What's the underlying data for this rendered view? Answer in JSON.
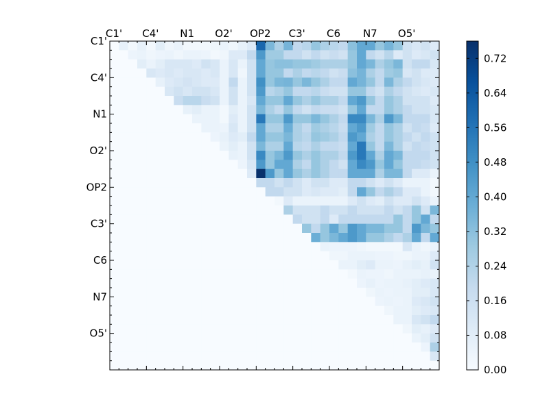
{
  "chart_data": {
    "type": "heatmap",
    "title": "",
    "xlabel": "",
    "ylabel": "",
    "n": 36,
    "x_tick_labels": [
      "C1'",
      "C4'",
      "N1",
      "O2'",
      "OP2",
      "C3'",
      "C6",
      "N7",
      "O5'"
    ],
    "y_tick_labels": [
      "C1'",
      "C4'",
      "N1",
      "O2'",
      "OP2",
      "C3'",
      "C6",
      "N7",
      "O5'"
    ],
    "tick_every": 4,
    "colorbar": {
      "vmin": 0.0,
      "vmax": 0.76,
      "ticks": [
        "0.00",
        "0.08",
        "0.16",
        "0.24",
        "0.32",
        "0.40",
        "0.48",
        "0.56",
        "0.64",
        "0.72"
      ],
      "colormap": "Blues",
      "stops": [
        "#f7fbff",
        "#deebf7",
        "#c6dbef",
        "#9ecae1",
        "#6baed6",
        "#4292c6",
        "#2171b5",
        "#08519c",
        "#08306b"
      ]
    },
    "matrix": [
      [
        0,
        0.06,
        0.02,
        0.06,
        0.02,
        0.08,
        0.03,
        0.05,
        0.02,
        0.02,
        0.02,
        0.03,
        0.05,
        0.03,
        0.06,
        0.1,
        0.6,
        0.35,
        0.25,
        0.36,
        0.2,
        0.22,
        0.3,
        0.25,
        0.22,
        0.2,
        0.32,
        0.4,
        0.4,
        0.3,
        0.36,
        0.3,
        0.15,
        0.12,
        0.15,
        0.1
      ],
      [
        0,
        0,
        0.04,
        0.05,
        0.03,
        0.04,
        0.05,
        0.03,
        0.05,
        0.05,
        0.04,
        0.02,
        0.03,
        0.1,
        0.1,
        0.2,
        0.45,
        0.28,
        0.28,
        0.2,
        0.2,
        0.15,
        0.2,
        0.15,
        0.18,
        0.15,
        0.3,
        0.4,
        0.2,
        0.15,
        0.22,
        0.1,
        0.15,
        0.1,
        0.12,
        0.15
      ],
      [
        0,
        0,
        0,
        0.08,
        0.05,
        0.08,
        0.12,
        0.12,
        0.12,
        0.1,
        0.15,
        0.12,
        0.05,
        0.12,
        0.05,
        0.15,
        0.4,
        0.3,
        0.32,
        0.32,
        0.3,
        0.3,
        0.28,
        0.25,
        0.25,
        0.25,
        0.3,
        0.4,
        0.35,
        0.25,
        0.3,
        0.35,
        0.15,
        0.2,
        0.2,
        0.12
      ],
      [
        0,
        0,
        0,
        0,
        0.12,
        0.1,
        0.12,
        0.1,
        0.12,
        0.12,
        0.1,
        0.12,
        0.05,
        0.12,
        0.03,
        0.15,
        0.4,
        0.3,
        0.3,
        0.2,
        0.25,
        0.2,
        0.22,
        0.2,
        0.15,
        0.18,
        0.32,
        0.36,
        0.25,
        0.2,
        0.28,
        0.3,
        0.12,
        0.15,
        0.1,
        0.1
      ],
      [
        0,
        0,
        0,
        0,
        0,
        0.06,
        0.1,
        0.12,
        0.14,
        0.12,
        0.1,
        0.1,
        0.05,
        0.2,
        0.05,
        0.15,
        0.48,
        0.3,
        0.35,
        0.36,
        0.3,
        0.35,
        0.3,
        0.25,
        0.2,
        0.2,
        0.4,
        0.36,
        0.3,
        0.2,
        0.35,
        0.25,
        0.2,
        0.15,
        0.12,
        0.1
      ],
      [
        0,
        0,
        0,
        0,
        0,
        0,
        0.12,
        0.15,
        0.12,
        0.15,
        0.15,
        0.12,
        0.05,
        0.15,
        0.05,
        0.15,
        0.45,
        0.22,
        0.25,
        0.3,
        0.2,
        0.2,
        0.22,
        0.18,
        0.15,
        0.15,
        0.3,
        0.3,
        0.2,
        0.15,
        0.25,
        0.2,
        0.15,
        0.12,
        0.1,
        0.12
      ],
      [
        0,
        0,
        0,
        0,
        0,
        0,
        0,
        0.18,
        0.22,
        0.22,
        0.18,
        0.15,
        0.05,
        0.15,
        0.05,
        0.12,
        0.4,
        0.3,
        0.3,
        0.4,
        0.3,
        0.25,
        0.3,
        0.25,
        0.25,
        0.2,
        0.4,
        0.45,
        0.3,
        0.2,
        0.3,
        0.25,
        0.15,
        0.15,
        0.15,
        0.1
      ],
      [
        0,
        0,
        0,
        0,
        0,
        0,
        0,
        0,
        0.06,
        0.08,
        0.05,
        0.05,
        0.02,
        0.08,
        0.05,
        0.15,
        0.35,
        0.25,
        0.2,
        0.3,
        0.2,
        0.15,
        0.2,
        0.18,
        0.18,
        0.15,
        0.3,
        0.4,
        0.2,
        0.2,
        0.3,
        0.25,
        0.2,
        0.15,
        0.15,
        0.12
      ],
      [
        0,
        0,
        0,
        0,
        0,
        0,
        0,
        0,
        0,
        0.05,
        0.05,
        0.05,
        0.02,
        0.1,
        0.05,
        0.15,
        0.55,
        0.3,
        0.3,
        0.45,
        0.3,
        0.3,
        0.35,
        0.3,
        0.25,
        0.2,
        0.5,
        0.5,
        0.35,
        0.25,
        0.45,
        0.35,
        0.2,
        0.2,
        0.2,
        0.12
      ],
      [
        0,
        0,
        0,
        0,
        0,
        0,
        0,
        0,
        0,
        0,
        0.05,
        0.05,
        0.04,
        0.12,
        0.05,
        0.15,
        0.4,
        0.25,
        0.25,
        0.38,
        0.25,
        0.2,
        0.28,
        0.25,
        0.22,
        0.18,
        0.4,
        0.45,
        0.28,
        0.2,
        0.3,
        0.25,
        0.15,
        0.2,
        0.18,
        0.1
      ],
      [
        0,
        0,
        0,
        0,
        0,
        0,
        0,
        0,
        0,
        0,
        0,
        0.04,
        0.06,
        0.1,
        0.08,
        0.2,
        0.4,
        0.3,
        0.3,
        0.35,
        0.25,
        0.22,
        0.3,
        0.28,
        0.25,
        0.2,
        0.45,
        0.4,
        0.25,
        0.2,
        0.3,
        0.25,
        0.2,
        0.15,
        0.2,
        0.15
      ],
      [
        0,
        0,
        0,
        0,
        0,
        0,
        0,
        0,
        0,
        0,
        0,
        0,
        0.05,
        0.08,
        0.05,
        0.15,
        0.35,
        0.25,
        0.25,
        0.4,
        0.22,
        0.2,
        0.25,
        0.2,
        0.2,
        0.18,
        0.4,
        0.55,
        0.3,
        0.2,
        0.35,
        0.25,
        0.15,
        0.2,
        0.18,
        0.15
      ],
      [
        0,
        0,
        0,
        0,
        0,
        0,
        0,
        0,
        0,
        0,
        0,
        0,
        0,
        0.06,
        0.05,
        0.15,
        0.5,
        0.3,
        0.35,
        0.45,
        0.3,
        0.25,
        0.3,
        0.25,
        0.25,
        0.2,
        0.45,
        0.55,
        0.4,
        0.25,
        0.4,
        0.35,
        0.2,
        0.2,
        0.2,
        0.15
      ],
      [
        0,
        0,
        0,
        0,
        0,
        0,
        0,
        0,
        0,
        0,
        0,
        0,
        0,
        0,
        0.04,
        0.12,
        0.45,
        0.3,
        0.4,
        0.4,
        0.25,
        0.2,
        0.3,
        0.25,
        0.2,
        0.15,
        0.4,
        0.5,
        0.45,
        0.3,
        0.4,
        0.3,
        0.2,
        0.2,
        0.18,
        0.15
      ],
      [
        0,
        0,
        0,
        0,
        0,
        0,
        0,
        0,
        0,
        0,
        0,
        0,
        0,
        0,
        0,
        0.1,
        0.76,
        0.45,
        0.3,
        0.4,
        0.3,
        0.25,
        0.3,
        0.25,
        0.2,
        0.2,
        0.4,
        0.4,
        0.4,
        0.25,
        0.35,
        0.35,
        0.2,
        0.1,
        0.1,
        0.05
      ],
      [
        0,
        0,
        0,
        0,
        0,
        0,
        0,
        0,
        0,
        0,
        0,
        0,
        0,
        0,
        0,
        0,
        0.2,
        0.2,
        0.15,
        0.2,
        0.15,
        0.1,
        0.15,
        0.15,
        0.1,
        0.1,
        0.2,
        0.2,
        0.15,
        0.1,
        0.15,
        0.1,
        0.05,
        0.05,
        0.05,
        0.02
      ],
      [
        0,
        0,
        0,
        0,
        0,
        0,
        0,
        0,
        0,
        0,
        0,
        0,
        0,
        0,
        0,
        0,
        0,
        0.2,
        0.2,
        0.15,
        0.15,
        0.1,
        0.12,
        0.1,
        0.1,
        0.08,
        0.2,
        0.4,
        0.3,
        0.2,
        0.25,
        0.2,
        0.1,
        0.1,
        0.05,
        0.02
      ],
      [
        0,
        0,
        0,
        0,
        0,
        0,
        0,
        0,
        0,
        0,
        0,
        0,
        0,
        0,
        0,
        0,
        0,
        0,
        0.02,
        0.1,
        0.05,
        0.05,
        0.05,
        0.05,
        0.05,
        0.05,
        0.1,
        0.15,
        0.1,
        0.08,
        0.15,
        0.1,
        0.1,
        0.15,
        0.1,
        0.05
      ],
      [
        0,
        0,
        0,
        0,
        0,
        0,
        0,
        0,
        0,
        0,
        0,
        0,
        0,
        0,
        0,
        0,
        0,
        0,
        0,
        0.25,
        0.15,
        0.15,
        0.15,
        0.2,
        0.15,
        0.15,
        0.2,
        0.15,
        0.15,
        0.15,
        0.2,
        0.15,
        0.2,
        0.3,
        0.15,
        0.35
      ],
      [
        0,
        0,
        0,
        0,
        0,
        0,
        0,
        0,
        0,
        0,
        0,
        0,
        0,
        0,
        0,
        0,
        0,
        0,
        0,
        0,
        0.2,
        0.15,
        0.15,
        0.2,
        0.1,
        0.2,
        0.2,
        0.2,
        0.2,
        0.2,
        0.2,
        0.3,
        0.2,
        0.3,
        0.4,
        0.2
      ],
      [
        0,
        0,
        0,
        0,
        0,
        0,
        0,
        0,
        0,
        0,
        0,
        0,
        0,
        0,
        0,
        0,
        0,
        0,
        0,
        0,
        0,
        0.3,
        0.2,
        0.3,
        0.4,
        0.3,
        0.45,
        0.4,
        0.35,
        0.35,
        0.3,
        0.3,
        0.2,
        0.45,
        0.35,
        0.3
      ],
      [
        0,
        0,
        0,
        0,
        0,
        0,
        0,
        0,
        0,
        0,
        0,
        0,
        0,
        0,
        0,
        0,
        0,
        0,
        0,
        0,
        0,
        0,
        0.38,
        0.3,
        0.35,
        0.4,
        0.45,
        0.4,
        0.3,
        0.3,
        0.25,
        0.2,
        0.25,
        0.4,
        0.2,
        0.4
      ],
      [
        0,
        0,
        0,
        0,
        0,
        0,
        0,
        0,
        0,
        0,
        0,
        0,
        0,
        0,
        0,
        0,
        0,
        0,
        0,
        0,
        0,
        0,
        0,
        0.05,
        0.04,
        0.04,
        0.04,
        0.03,
        0.02,
        0.02,
        0.02,
        0.02,
        0.12,
        0.05,
        0.03,
        0.05
      ],
      [
        0,
        0,
        0,
        0,
        0,
        0,
        0,
        0,
        0,
        0,
        0,
        0,
        0,
        0,
        0,
        0,
        0,
        0,
        0,
        0,
        0,
        0,
        0,
        0,
        0.03,
        0.03,
        0.05,
        0.05,
        0.05,
        0.04,
        0.04,
        0.03,
        0.03,
        0.05,
        0.05,
        0.1
      ],
      [
        0,
        0,
        0,
        0,
        0,
        0,
        0,
        0,
        0,
        0,
        0,
        0,
        0,
        0,
        0,
        0,
        0,
        0,
        0,
        0,
        0,
        0,
        0,
        0,
        0,
        0.05,
        0.05,
        0.08,
        0.1,
        0.05,
        0.05,
        0.04,
        0.06,
        0.08,
        0.06,
        0.15
      ],
      [
        0,
        0,
        0,
        0,
        0,
        0,
        0,
        0,
        0,
        0,
        0,
        0,
        0,
        0,
        0,
        0,
        0,
        0,
        0,
        0,
        0,
        0,
        0,
        0,
        0,
        0,
        0.02,
        0.05,
        0.04,
        0.04,
        0.03,
        0.05,
        0.05,
        0.05,
        0.06,
        0.05
      ],
      [
        0,
        0,
        0,
        0,
        0,
        0,
        0,
        0,
        0,
        0,
        0,
        0,
        0,
        0,
        0,
        0,
        0,
        0,
        0,
        0,
        0,
        0,
        0,
        0,
        0,
        0,
        0,
        0.04,
        0.06,
        0.04,
        0.05,
        0.05,
        0.06,
        0.08,
        0.1,
        0.12
      ],
      [
        0,
        0,
        0,
        0,
        0,
        0,
        0,
        0,
        0,
        0,
        0,
        0,
        0,
        0,
        0,
        0,
        0,
        0,
        0,
        0,
        0,
        0,
        0,
        0,
        0,
        0,
        0,
        0,
        0.03,
        0.05,
        0.04,
        0.05,
        0.05,
        0.08,
        0.08,
        0.12
      ],
      [
        0,
        0,
        0,
        0,
        0,
        0,
        0,
        0,
        0,
        0,
        0,
        0,
        0,
        0,
        0,
        0,
        0,
        0,
        0,
        0,
        0,
        0,
        0,
        0,
        0,
        0,
        0,
        0,
        0,
        0.04,
        0.05,
        0.04,
        0.05,
        0.1,
        0.12,
        0.15
      ],
      [
        0,
        0,
        0,
        0,
        0,
        0,
        0,
        0,
        0,
        0,
        0,
        0,
        0,
        0,
        0,
        0,
        0,
        0,
        0,
        0,
        0,
        0,
        0,
        0,
        0,
        0,
        0,
        0,
        0,
        0,
        0.03,
        0.05,
        0.05,
        0.08,
        0.1,
        0.12
      ],
      [
        0,
        0,
        0,
        0,
        0,
        0,
        0,
        0,
        0,
        0,
        0,
        0,
        0,
        0,
        0,
        0,
        0,
        0,
        0,
        0,
        0,
        0,
        0,
        0,
        0,
        0,
        0,
        0,
        0,
        0,
        0,
        0.05,
        0.05,
        0.12,
        0.15,
        0.2
      ],
      [
        0,
        0,
        0,
        0,
        0,
        0,
        0,
        0,
        0,
        0,
        0,
        0,
        0,
        0,
        0,
        0,
        0,
        0,
        0,
        0,
        0,
        0,
        0,
        0,
        0,
        0,
        0,
        0,
        0,
        0,
        0,
        0,
        0.03,
        0.08,
        0.06,
        0.1
      ],
      [
        0,
        0,
        0,
        0,
        0,
        0,
        0,
        0,
        0,
        0,
        0,
        0,
        0,
        0,
        0,
        0,
        0,
        0,
        0,
        0,
        0,
        0,
        0,
        0,
        0,
        0,
        0,
        0,
        0,
        0,
        0,
        0,
        0,
        0.05,
        0.08,
        0.15
      ],
      [
        0,
        0,
        0,
        0,
        0,
        0,
        0,
        0,
        0,
        0,
        0,
        0,
        0,
        0,
        0,
        0,
        0,
        0,
        0,
        0,
        0,
        0,
        0,
        0,
        0,
        0,
        0,
        0,
        0,
        0,
        0,
        0,
        0,
        0,
        0.04,
        0.25
      ],
      [
        0,
        0,
        0,
        0,
        0,
        0,
        0,
        0,
        0,
        0,
        0,
        0,
        0,
        0,
        0,
        0,
        0,
        0,
        0,
        0,
        0,
        0,
        0,
        0,
        0,
        0,
        0,
        0,
        0,
        0,
        0,
        0,
        0,
        0,
        0,
        0.12
      ],
      [
        0,
        0,
        0,
        0,
        0,
        0,
        0,
        0,
        0,
        0,
        0,
        0,
        0,
        0,
        0,
        0,
        0,
        0,
        0,
        0,
        0,
        0,
        0,
        0,
        0,
        0,
        0,
        0,
        0,
        0,
        0,
        0,
        0,
        0,
        0,
        0
      ]
    ]
  }
}
